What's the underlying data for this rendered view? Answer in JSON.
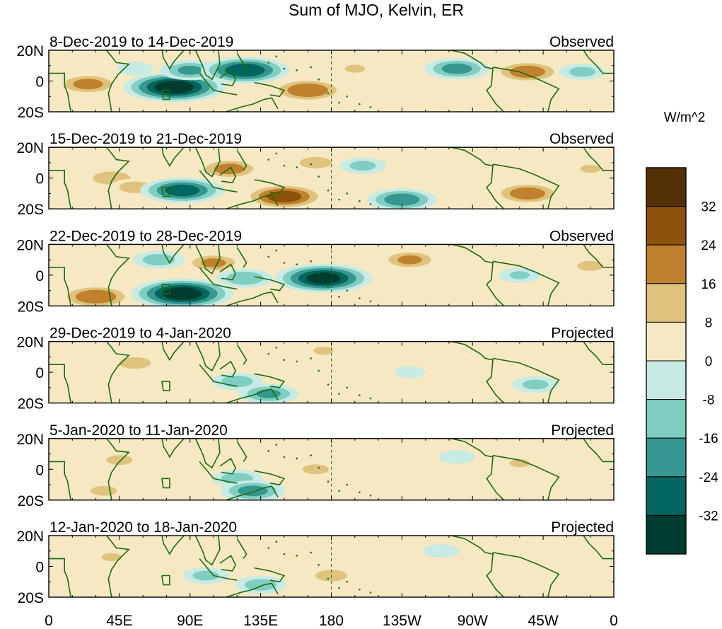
{
  "chart_data": {
    "type": "heatmap",
    "title": "Sum of MJO, Kelvin, ER",
    "colorbar": {
      "unit_label": "W/m^2",
      "tick_labels": [
        "32",
        "24",
        "16",
        "8",
        "0",
        "-8",
        "-16",
        "-24",
        "-32"
      ],
      "levels": [
        32,
        24,
        16,
        8,
        0,
        -8,
        -16,
        -24,
        -32
      ],
      "bins_top_to_bottom": [
        {
          "range": ">32",
          "color": "#543005"
        },
        {
          "range": "24 to 32",
          "color": "#8c510a"
        },
        {
          "range": "16 to 24",
          "color": "#bf812d"
        },
        {
          "range": "8 to 16",
          "color": "#dfc27d"
        },
        {
          "range": "0 to 8",
          "color": "#f6e8c3"
        },
        {
          "range": "-8 to 0",
          "color": "#c7eae5"
        },
        {
          "range": "-16 to -8",
          "color": "#80cdc1"
        },
        {
          "range": "-24 to -16",
          "color": "#35978f"
        },
        {
          "range": "-32 to -24",
          "color": "#01665e"
        },
        {
          "range": "<-32",
          "color": "#003c30"
        }
      ]
    },
    "x_axis": {
      "tick_labels": [
        "0",
        "45E",
        "90E",
        "135E",
        "180",
        "135W",
        "90W",
        "45W",
        "0"
      ],
      "lon_range": [
        0,
        360
      ],
      "dateline_lon": 180
    },
    "y_axis": {
      "tick_labels": [
        "20N",
        "0",
        "20S"
      ],
      "lat_range": [
        -20,
        20
      ]
    },
    "panels": [
      {
        "date_range": "8-Dec-2019 to 14-Dec-2019",
        "status": "Observed",
        "anomalies": [
          {
            "lon": 25,
            "lat": -2,
            "value": 20
          },
          {
            "lon": 55,
            "lat": 8,
            "value": -8
          },
          {
            "lon": 80,
            "lat": -4,
            "value": -36
          },
          {
            "lon": 90,
            "lat": 7,
            "value": -18
          },
          {
            "lon": 125,
            "lat": 7,
            "value": -30
          },
          {
            "lon": 165,
            "lat": -6,
            "value": 24
          },
          {
            "lon": 195,
            "lat": 8,
            "value": 10
          },
          {
            "lon": 260,
            "lat": 8,
            "value": -20
          },
          {
            "lon": 305,
            "lat": 6,
            "value": 22
          },
          {
            "lon": 340,
            "lat": 6,
            "value": -12
          }
        ]
      },
      {
        "date_range": "15-Dec-2019 to 21-Dec-2019",
        "status": "Observed",
        "anomalies": [
          {
            "lon": 40,
            "lat": 0,
            "value": 16
          },
          {
            "lon": 55,
            "lat": -6,
            "value": 14
          },
          {
            "lon": 85,
            "lat": -8,
            "value": -28
          },
          {
            "lon": 115,
            "lat": 6,
            "value": 20
          },
          {
            "lon": 150,
            "lat": -12,
            "value": 28
          },
          {
            "lon": 170,
            "lat": 10,
            "value": 14
          },
          {
            "lon": 200,
            "lat": 8,
            "value": -12
          },
          {
            "lon": 225,
            "lat": -14,
            "value": -22
          },
          {
            "lon": 305,
            "lat": -10,
            "value": 22
          },
          {
            "lon": 345,
            "lat": 6,
            "value": 10
          }
        ]
      },
      {
        "date_range": "22-Dec-2019 to 28-Dec-2019",
        "status": "Observed",
        "anomalies": [
          {
            "lon": 30,
            "lat": -14,
            "value": 24
          },
          {
            "lon": 85,
            "lat": -12,
            "value": -36
          },
          {
            "lon": 70,
            "lat": 10,
            "value": -14
          },
          {
            "lon": 105,
            "lat": 8,
            "value": 18
          },
          {
            "lon": 125,
            "lat": -2,
            "value": -16
          },
          {
            "lon": 175,
            "lat": -2,
            "value": -34
          },
          {
            "lon": 230,
            "lat": 10,
            "value": 18
          },
          {
            "lon": 300,
            "lat": 0,
            "value": -10
          },
          {
            "lon": 345,
            "lat": 6,
            "value": 12
          }
        ]
      },
      {
        "date_range": "29-Dec-2019 to 4-Jan-2020",
        "status": "Projected",
        "anomalies": [
          {
            "lon": 55,
            "lat": 6,
            "value": 14
          },
          {
            "lon": 120,
            "lat": -6,
            "value": -14
          },
          {
            "lon": 140,
            "lat": -14,
            "value": -18
          },
          {
            "lon": 175,
            "lat": 14,
            "value": 10
          },
          {
            "lon": 230,
            "lat": 0,
            "value": -6
          },
          {
            "lon": 310,
            "lat": -8,
            "value": -12
          }
        ]
      },
      {
        "date_range": "5-Jan-2020 to 11-Jan-2020",
        "status": "Projected",
        "anomalies": [
          {
            "lon": 45,
            "lat": 6,
            "value": 12
          },
          {
            "lon": 35,
            "lat": -14,
            "value": 12
          },
          {
            "lon": 120,
            "lat": -6,
            "value": -14
          },
          {
            "lon": 130,
            "lat": -14,
            "value": -20
          },
          {
            "lon": 170,
            "lat": 0,
            "value": 12
          },
          {
            "lon": 260,
            "lat": 8,
            "value": -8
          },
          {
            "lon": 300,
            "lat": 4,
            "value": 10
          }
        ]
      },
      {
        "date_range": "12-Jan-2020 to 18-Jan-2020",
        "status": "Projected",
        "anomalies": [
          {
            "lon": 40,
            "lat": 6,
            "value": 10
          },
          {
            "lon": 100,
            "lat": -6,
            "value": -12
          },
          {
            "lon": 135,
            "lat": -12,
            "value": -14
          },
          {
            "lon": 180,
            "lat": -6,
            "value": 14
          },
          {
            "lon": 250,
            "lat": 10,
            "value": -8
          },
          {
            "lon": 300,
            "lat": 10,
            "value": 8
          }
        ]
      }
    ]
  }
}
